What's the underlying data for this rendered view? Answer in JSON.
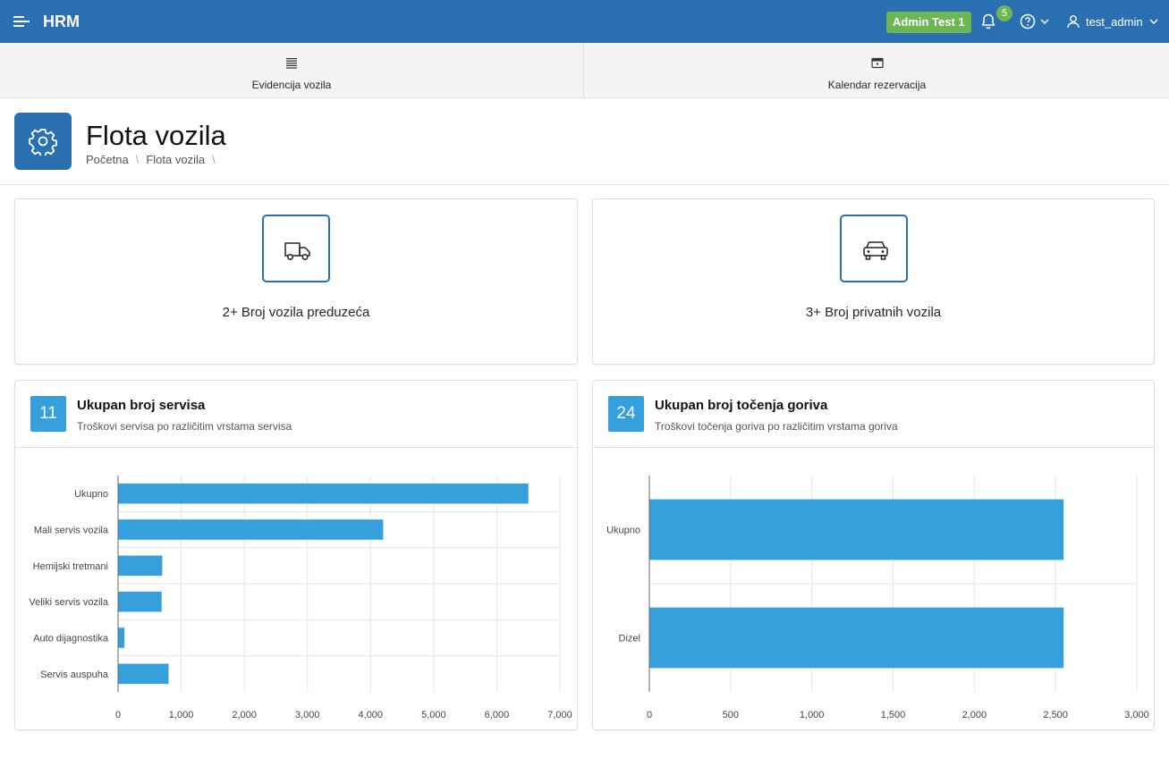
{
  "header": {
    "app_title": "HRM",
    "env_badge": "Admin Test 1",
    "notification_count": "5",
    "username": "test_admin",
    "accent": "#2a6fb0",
    "badge_color": "#6cb653"
  },
  "nav": {
    "tabs": [
      {
        "label": "Evidencija vozila",
        "icon": "list-icon"
      },
      {
        "label": "Kalendar rezervacija",
        "icon": "calendar-icon"
      }
    ]
  },
  "page": {
    "title": "Flota vozila",
    "breadcrumb": [
      "Početna",
      "Flota vozila"
    ]
  },
  "stats": [
    {
      "label": "2+ Broj vozila preduzeća",
      "icon": "truck-icon"
    },
    {
      "label": "3+ Broj privatnih vozila",
      "icon": "car-icon"
    }
  ],
  "chart_data": [
    {
      "type": "bar",
      "orientation": "horizontal",
      "count": "11",
      "title": "Ukupan broj servisa",
      "subtitle": "Troškovi servisa po različitim vrstama servisa",
      "categories": [
        "Ukupno",
        "Mali servis vozila",
        "Hemijski tretmani",
        "Veliki servis vozila",
        "Auto dijagnostika",
        "Servis auspuha"
      ],
      "values": [
        6500,
        4200,
        700,
        690,
        100,
        800
      ],
      "xlim": [
        0,
        7000
      ],
      "ticks": [
        "0",
        "1,000",
        "2,000",
        "3,000",
        "4,000",
        "5,000",
        "6,000",
        "7,000"
      ],
      "grid": true,
      "color": "#36a0dc"
    },
    {
      "type": "bar",
      "orientation": "horizontal",
      "count": "24",
      "title": "Ukupan broj točenja goriva",
      "subtitle": "Troškovi točenja goriva po različitim vrstama goriva",
      "categories": [
        "Ukupno",
        "Dizel"
      ],
      "values": [
        2550,
        2550
      ],
      "xlim": [
        0,
        3000
      ],
      "ticks": [
        "0",
        "500",
        "1,000",
        "1,500",
        "2,000",
        "2,500",
        "3,000"
      ],
      "grid": true,
      "color": "#36a0dc"
    }
  ]
}
